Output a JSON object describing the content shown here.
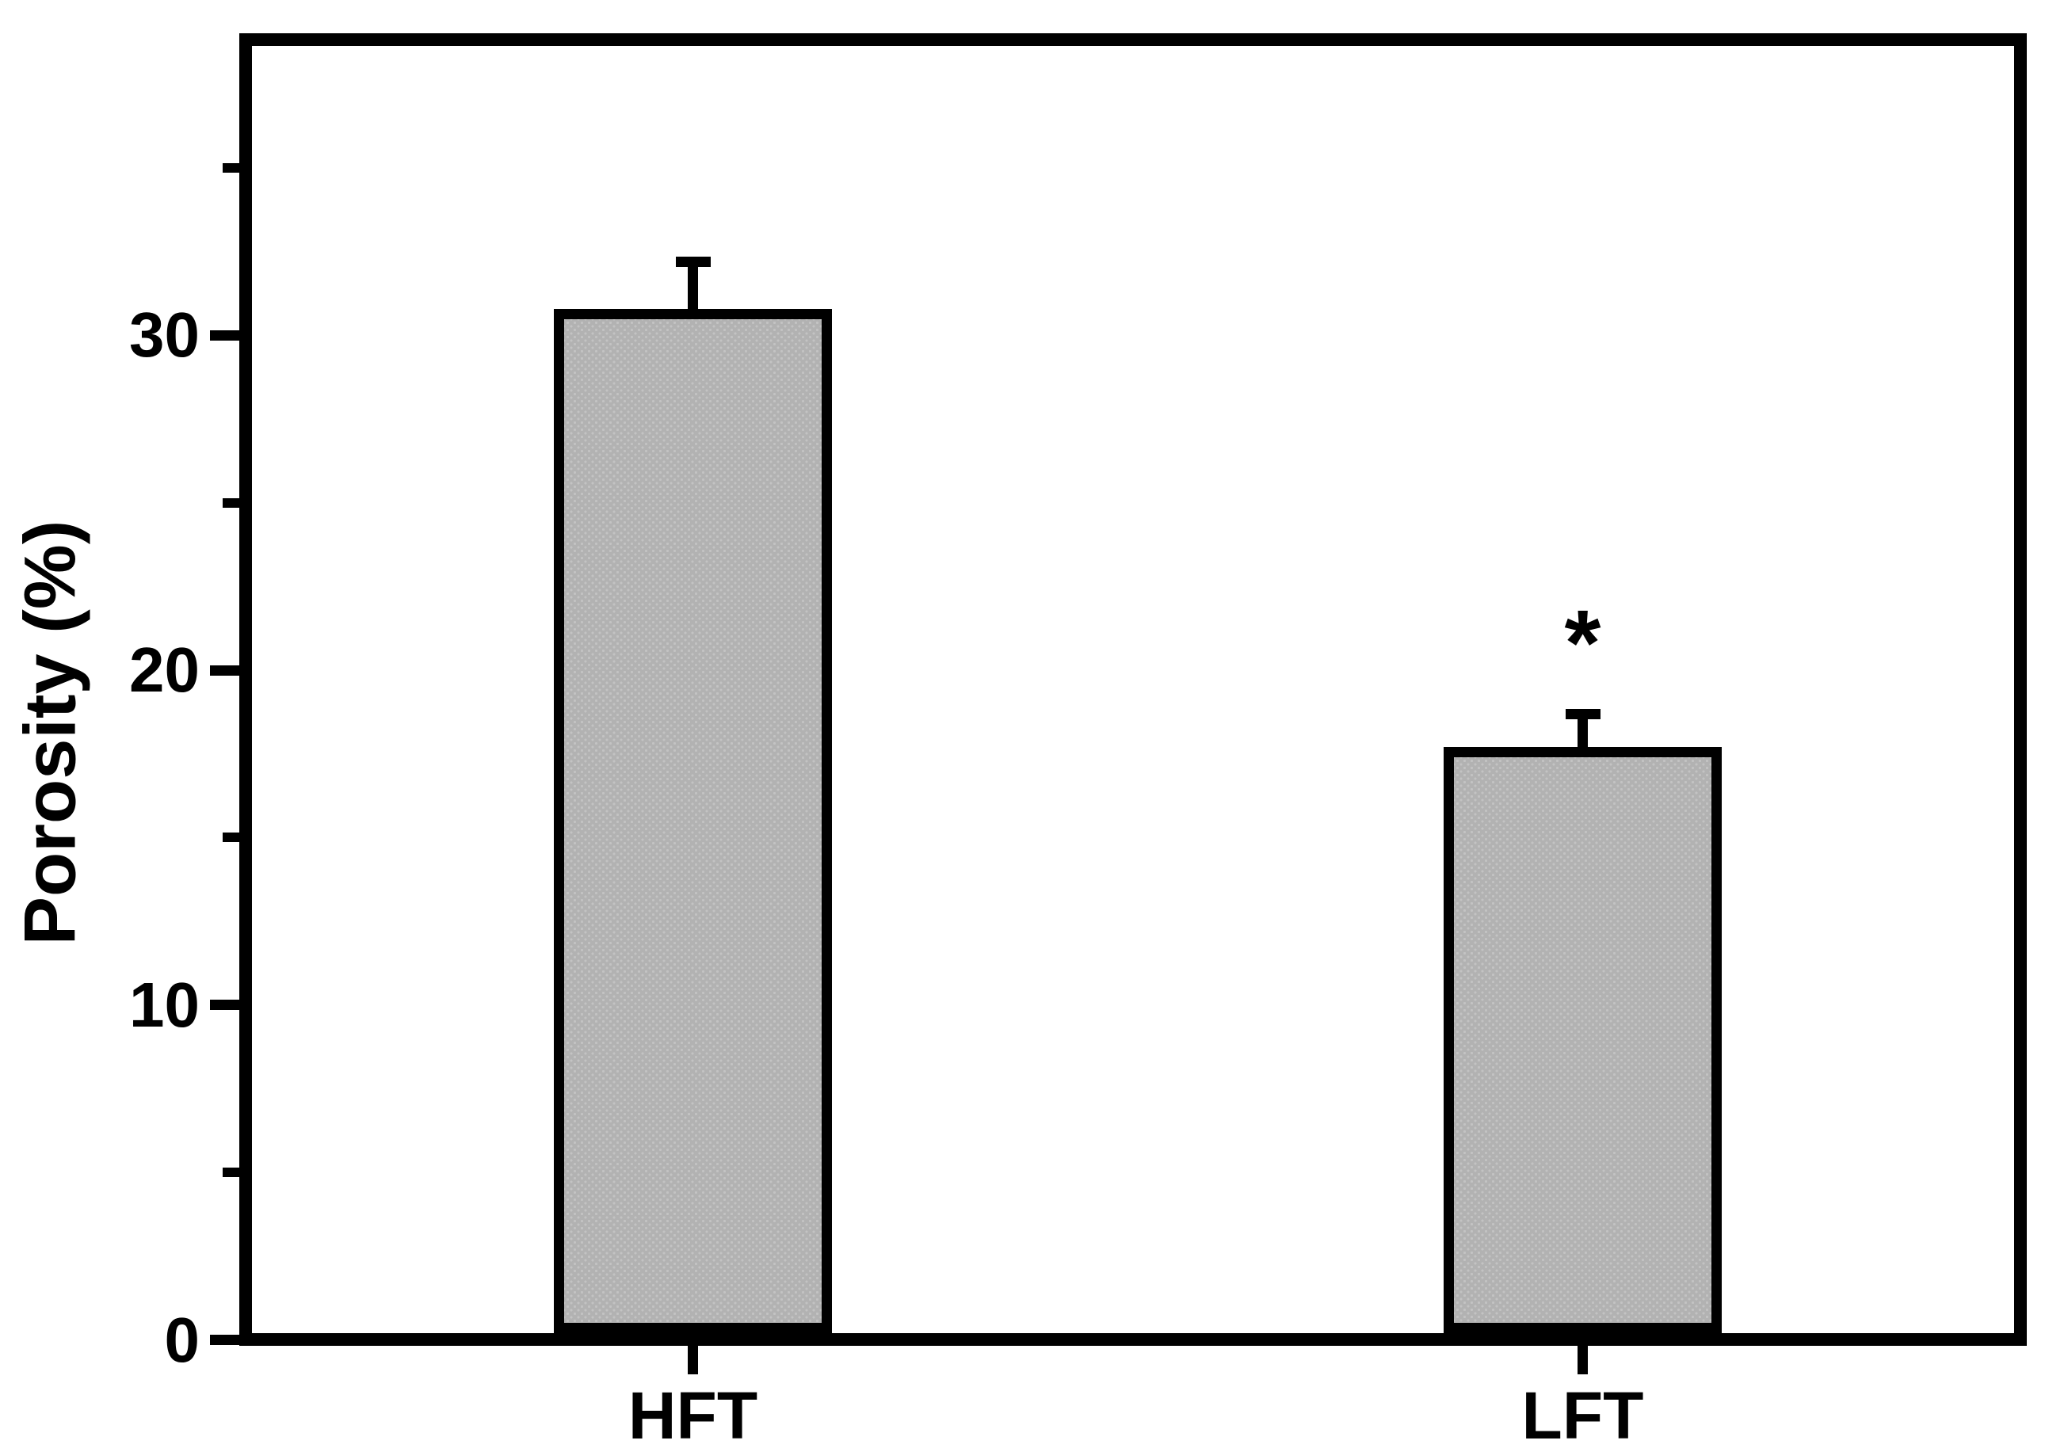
{
  "figure": {
    "background_color": "#ffffff",
    "text_color": "#000000"
  },
  "chart_data": {
    "type": "bar",
    "title": "",
    "categories": [
      "HFT",
      "LFT"
    ],
    "values": [
      30.8,
      17.7
    ],
    "errors": [
      1.4,
      1.0
    ],
    "error_caps": true,
    "xlabel": "",
    "ylabel": "Porosity (%)",
    "yticks": [
      0,
      10,
      20,
      30
    ],
    "minor_yticks": [
      5,
      15,
      25,
      35
    ],
    "ylim": [
      0,
      38.4
    ],
    "grid": false,
    "legend": false,
    "bar_fill_color": "#b2b2b2",
    "bar_stipple_color": "#c3c3c3",
    "bar_edge_color": "#000000",
    "annotations": [
      {
        "text": "*",
        "category": "LFT",
        "y_value": 20.8
      }
    ]
  }
}
